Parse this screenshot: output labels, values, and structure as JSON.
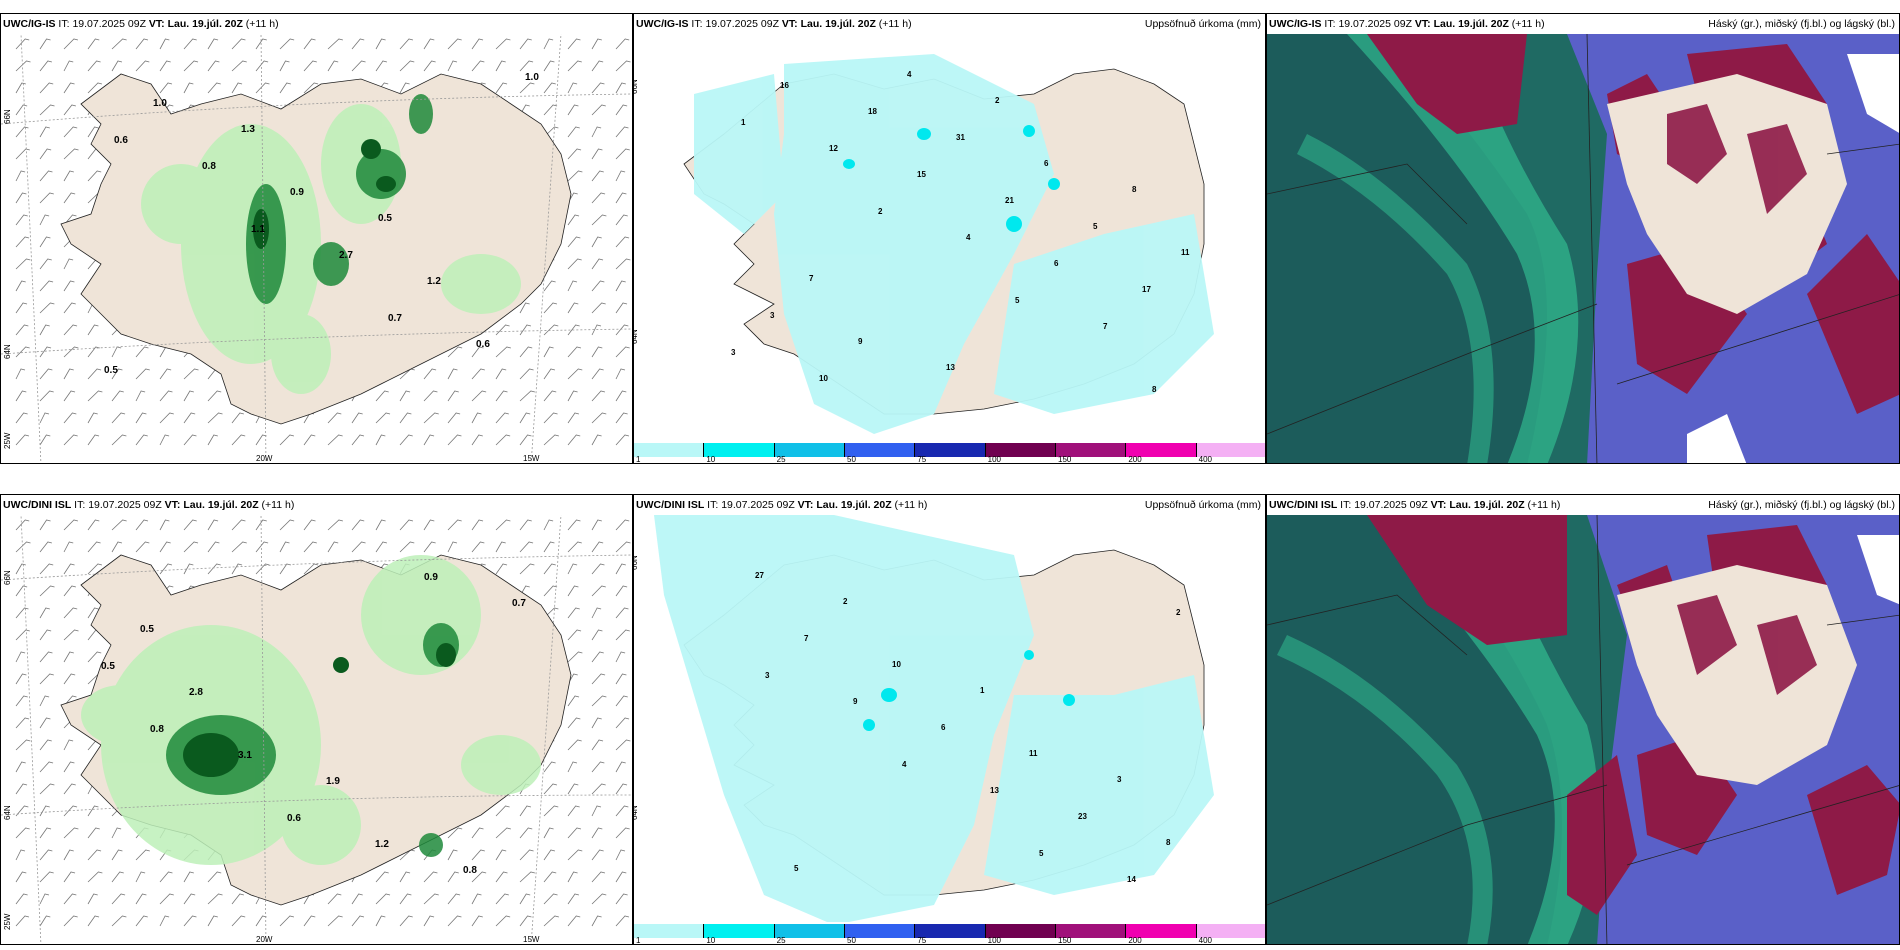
{
  "panels": [
    {
      "model": "UWC/IG-IS",
      "it_label": "IT:",
      "it": "19.07.2025 09Z",
      "vt_label": "VT:",
      "vt": "Lau. 19.júl. 20Z",
      "lead": "(+11 h)",
      "right": ""
    },
    {
      "model": "UWC/IG-IS",
      "it_label": "IT:",
      "it": "19.07.2025 09Z",
      "vt_label": "VT:",
      "vt": "Lau. 19.júl. 20Z",
      "lead": "(+11 h)",
      "right": "Uppsöfnuð úrkoma (mm)"
    },
    {
      "model": "UWC/IG-IS",
      "it_label": "IT:",
      "it": "19.07.2025 09Z",
      "vt_label": "VT:",
      "vt": "Lau. 19.júl. 20Z",
      "lead": "(+11 h)",
      "right": "Háský (gr.), miðský (fj.bl.) og lágský (bl.)"
    },
    {
      "model": "UWC/DINI ISL",
      "it_label": "IT:",
      "it": "19.07.2025 09Z",
      "vt_label": "VT:",
      "vt": "Lau. 19.júl. 20Z",
      "lead": "(+11 h)",
      "right": ""
    },
    {
      "model": "UWC/DINI ISL",
      "it_label": "IT:",
      "it": "19.07.2025 09Z",
      "vt_label": "VT:",
      "vt": "Lau. 19.júl. 20Z",
      "lead": "(+11 h)",
      "right": "Uppsöfnuð úrkoma (mm)"
    },
    {
      "model": "UWC/DINI ISL",
      "it_label": "IT:",
      "it": "19.07.2025 09Z",
      "vt_label": "VT:",
      "vt": "Lau. 19.júl. 20Z",
      "lead": "(+11 h)",
      "right": "Háský (gr.), miðský (fj.bl.) og lágský (bl.)"
    }
  ],
  "axes": {
    "lat66": "66N",
    "lat64": "64N",
    "lon25": "25W",
    "lon20": "20W",
    "lon15": "15W"
  },
  "colorbar": {
    "labels": [
      "1",
      "10",
      "25",
      "50",
      "75",
      "100",
      "150",
      "200",
      "400"
    ],
    "colors": [
      "#b9f7f7",
      "#00f0f0",
      "#10c0e8",
      "#3060f0",
      "#1828b0",
      "#700050",
      "#a0107a",
      "#f000b0",
      "#f4b0f4"
    ]
  },
  "precip_values_top": [
    "1",
    "2",
    "5",
    "8",
    "12",
    "4",
    "7",
    "16",
    "15",
    "6",
    "3",
    "18",
    "21",
    "17",
    "10",
    "31",
    "5",
    "3",
    "4",
    "6",
    "11",
    "9",
    "2",
    "8",
    "7",
    "13"
  ],
  "precip_values_bottom": [
    "3",
    "4",
    "5",
    "2",
    "9",
    "13",
    "14",
    "7",
    "6",
    "23",
    "27",
    "10",
    "11",
    "8",
    "2",
    "1",
    "3",
    "5"
  ],
  "wind_values_top": [
    "0.6",
    "1.1",
    "0.7",
    "1.0",
    "0.8",
    "2.7",
    "0.6",
    "1.0",
    "0.9",
    "1.2",
    "0.5",
    "1.3",
    "0.5"
  ],
  "wind_values_bottom": [
    "0.8",
    "0.6",
    "0.9",
    "0.5",
    "3.1",
    "1.2",
    "0.7",
    "2.8",
    "1.9",
    "0.8",
    "0.5"
  ],
  "colors": {
    "land": "#efe4d8",
    "light_precip": "#b9f7f7",
    "green_light": "#bdf0b8",
    "green_dark": "#0a5a1e",
    "cloud_blue": "#5a60c8",
    "cloud_maroon": "#8e1a47",
    "cloud_teal": "#1f6a63",
    "cloud_green": "#36d19c"
  }
}
